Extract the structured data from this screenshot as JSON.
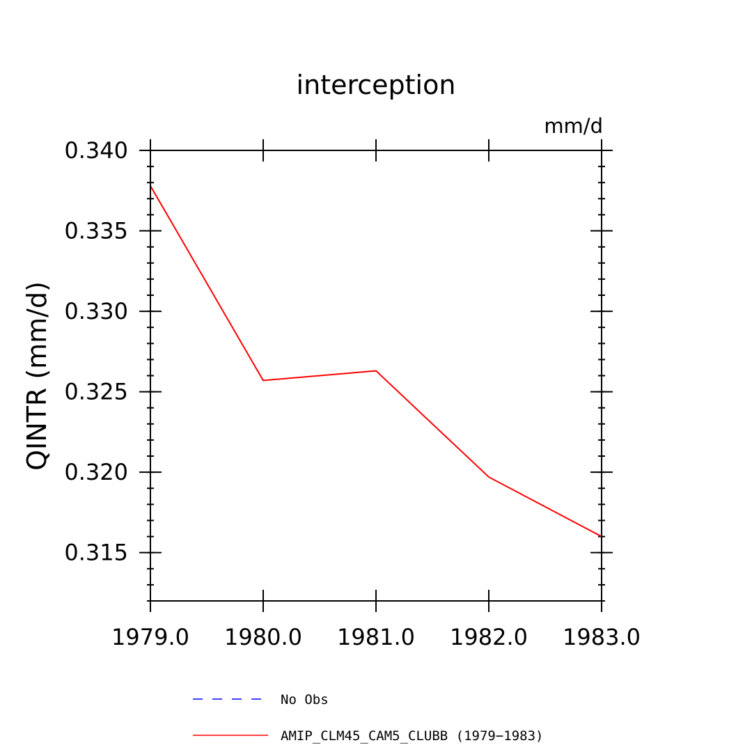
{
  "chart_data": {
    "type": "line",
    "title": "interception",
    "units_label": "mm/d",
    "ylabel": "QINTR  (mm/d)",
    "xlabel": "",
    "x": [
      1979,
      1980,
      1981,
      1982,
      1983
    ],
    "xlim": [
      1979,
      1983
    ],
    "ylim": [
      0.312,
      0.34
    ],
    "x_ticks": [
      1979,
      1980,
      1981,
      1982,
      1983
    ],
    "x_tick_labels": [
      "1979.0",
      "1980.0",
      "1981.0",
      "1982.0",
      "1983.0"
    ],
    "y_ticks": [
      0.315,
      0.32,
      0.325,
      0.33,
      0.335,
      0.34
    ],
    "y_tick_labels": [
      "0.315",
      "0.320",
      "0.325",
      "0.330",
      "0.335",
      "0.340"
    ],
    "y_minor_step": 0.001,
    "grid": false,
    "legend_position": "bottom",
    "series": [
      {
        "name": "AMIP_CLM45_CAM5_CLUBB (1979-1983)",
        "color": "#ff0000",
        "dash": "solid",
        "values": [
          0.3378,
          0.3257,
          0.3263,
          0.3197,
          0.316
        ]
      }
    ],
    "legend": [
      {
        "label": "No Obs",
        "color": "#0000ff",
        "dash": "dashed"
      },
      {
        "label": "AMIP_CLM45_CAM5_CLUBB (1979−1983)",
        "color": "#ff0000",
        "dash": "solid"
      }
    ]
  }
}
